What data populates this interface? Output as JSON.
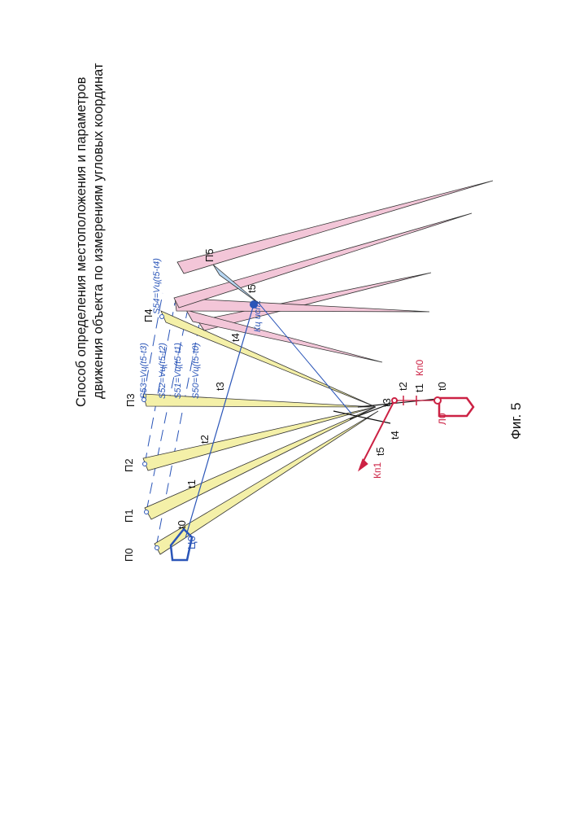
{
  "title": {
    "line1": "Способ определения местоположения и параметров",
    "line2": "движения объекта по измерениям угловых координат"
  },
  "caption": "Фиг. 5",
  "observers": [
    "П0",
    "П1",
    "П2",
    "П3",
    "П4",
    "П5"
  ],
  "time_marks": [
    "t0",
    "t1",
    "t2",
    "t3",
    "t4",
    "t5"
  ],
  "target_label": "Ц0",
  "target_true_course": "Кц ист.",
  "distance_formulas": [
    "S50=Vц(t5-t0)",
    "S51=Vц(t5-t1)",
    "S52=Vц(t5-t2)",
    "S53=Vц(t5-t3)",
    "S54=Vц(t5-t4)"
  ],
  "red_labels": {
    "own_ship": "Л0",
    "course0": "Кп0",
    "course1": "Кп1"
  },
  "red_time_marks": [
    "t0",
    "t1",
    "t2",
    "t3",
    "t4",
    "t5"
  ],
  "colors": {
    "yellow_beam": "#f4f0a8",
    "pink_beam": "#f3c6d8",
    "blue_beam": "#b6d6f2",
    "blue_line": "#2a55b8",
    "red_line": "#cc2244",
    "outline": "#333333"
  }
}
